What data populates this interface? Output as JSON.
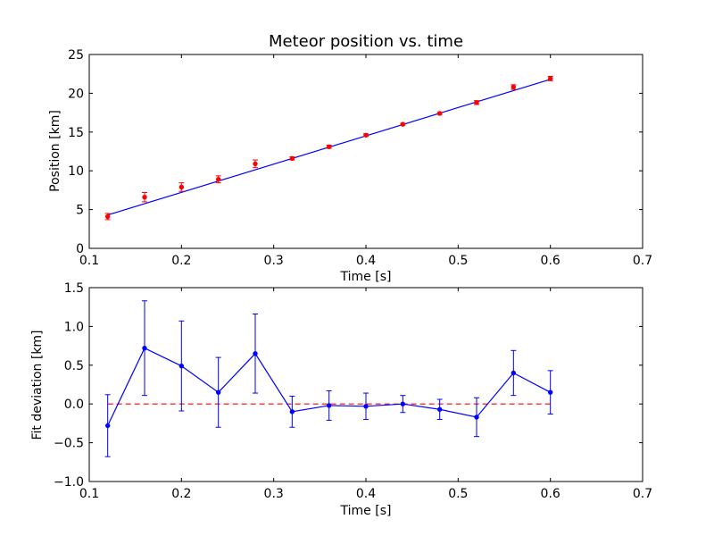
{
  "chart_data": [
    {
      "type": "scatter",
      "title": "Meteor position vs. time",
      "xlabel": "Time [s]",
      "ylabel": "Position [km]",
      "xlim": [
        0.1,
        0.7
      ],
      "ylim": [
        0,
        25
      ],
      "xticks": [
        0.1,
        0.2,
        0.3,
        0.4,
        0.5,
        0.6,
        0.7
      ],
      "xtick_labels": [
        "0.1",
        "0.2",
        "0.3",
        "0.4",
        "0.5",
        "0.6",
        "0.7"
      ],
      "yticks": [
        0,
        5,
        10,
        15,
        20,
        25
      ],
      "ytick_labels": [
        "0",
        "5",
        "10",
        "15",
        "20",
        "25"
      ],
      "grid": false,
      "series": [
        {
          "kind": "errorbar-points",
          "color": "#ff0000",
          "x": [
            0.12,
            0.16,
            0.2,
            0.24,
            0.28,
            0.32,
            0.36,
            0.4,
            0.44,
            0.48,
            0.52,
            0.56,
            0.6
          ],
          "y": [
            4.1,
            6.6,
            7.9,
            8.9,
            10.9,
            11.6,
            13.1,
            14.6,
            16.0,
            17.4,
            18.8,
            20.8,
            21.9
          ],
          "yerr": [
            0.4,
            0.6,
            0.55,
            0.45,
            0.5,
            0.2,
            0.2,
            0.17,
            0.12,
            0.13,
            0.25,
            0.3,
            0.28
          ]
        },
        {
          "kind": "line",
          "color": "#0000ff",
          "x": [
            0.12,
            0.6
          ],
          "y": [
            4.3,
            21.8
          ]
        }
      ]
    },
    {
      "type": "line",
      "xlabel": "Time [s]",
      "ylabel": "Fit deviation [km]",
      "xlim": [
        0.1,
        0.7
      ],
      "ylim": [
        -1.0,
        1.5
      ],
      "xticks": [
        0.1,
        0.2,
        0.3,
        0.4,
        0.5,
        0.6,
        0.7
      ],
      "xtick_labels": [
        "0.1",
        "0.2",
        "0.3",
        "0.4",
        "0.5",
        "0.6",
        "0.7"
      ],
      "yticks": [
        -1.0,
        -0.5,
        0.0,
        0.5,
        1.0,
        1.5
      ],
      "ytick_labels": [
        "−1.0",
        "−0.5",
        "0.0",
        "0.5",
        "1.0",
        "1.5"
      ],
      "grid": false,
      "series": [
        {
          "kind": "errorbar-line",
          "color": "#0000ff",
          "x": [
            0.12,
            0.16,
            0.2,
            0.24,
            0.28,
            0.32,
            0.36,
            0.4,
            0.44,
            0.48,
            0.52,
            0.56,
            0.6
          ],
          "y": [
            -0.28,
            0.72,
            0.49,
            0.15,
            0.65,
            -0.1,
            -0.02,
            -0.03,
            0.0,
            -0.07,
            -0.17,
            0.4,
            0.15
          ],
          "yerr": [
            0.4,
            0.61,
            0.58,
            0.45,
            0.51,
            0.2,
            0.19,
            0.17,
            0.11,
            0.13,
            0.25,
            0.29,
            0.28
          ]
        },
        {
          "kind": "reference-line",
          "color": "#ff0000",
          "dashed": true,
          "x": [
            0.12,
            0.6
          ],
          "y": [
            0.0,
            0.0
          ]
        }
      ]
    }
  ]
}
